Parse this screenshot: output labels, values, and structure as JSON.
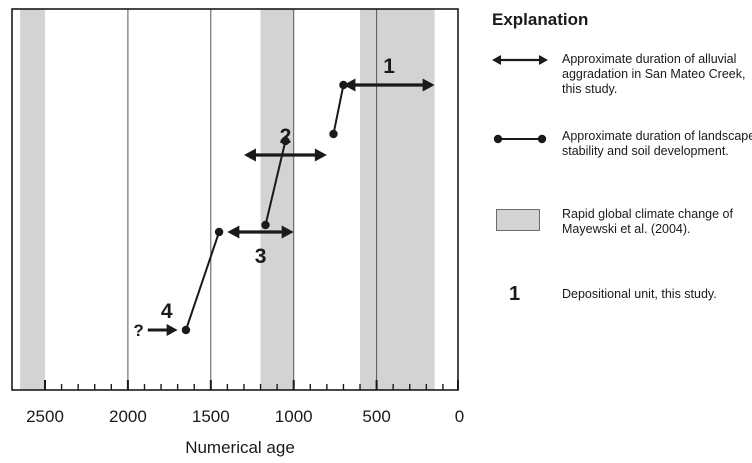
{
  "chart_data": {
    "type": "timeline",
    "xlabel": "Numerical age",
    "xlim": [
      2650,
      0
    ],
    "x_reversed": true,
    "ticks_major": [
      2500,
      2000,
      1500,
      1000,
      500,
      0
    ],
    "tick_labels": [
      "2500",
      "2000",
      "1500",
      "1000",
      "500",
      "0"
    ],
    "ticks_minor": [
      2400,
      2300,
      2200,
      2100,
      1900,
      1800,
      1700,
      1600,
      1400,
      1300,
      1200,
      1100,
      900,
      800,
      700,
      600,
      400,
      300,
      200,
      100
    ],
    "vlines": [
      2000,
      1500,
      1000,
      500
    ],
    "climate_change_periods": [
      [
        2650,
        2500
      ],
      [
        1200,
        1000
      ],
      [
        600,
        150
      ]
    ],
    "aggradation_units": [
      {
        "label": "1",
        "start": 700,
        "end": 150,
        "level": 8
      },
      {
        "label": "2",
        "start": 1300,
        "end": 800,
        "level": 6
      },
      {
        "label": "3",
        "start": 1400,
        "end": 1000,
        "level": 3.8
      },
      {
        "label": "4",
        "start": 1880,
        "end": 1700,
        "level": 1,
        "uncertain_start": true,
        "uncertain_label": "?"
      }
    ],
    "stability_segments": [
      {
        "from": [
          1650,
          1
        ],
        "to": [
          1450,
          3.8
        ]
      },
      {
        "from": [
          1170,
          4
        ],
        "to": [
          1050,
          6.4
        ]
      },
      {
        "from": [
          760,
          6.6
        ],
        "to": [
          700,
          8
        ]
      }
    ],
    "grid": false
  },
  "legend": {
    "title": "Explanation",
    "items": [
      {
        "symbol": "double-arrow-icon",
        "text": "Approximate duration of alluvial aggradation in San Mateo Creek, this study."
      },
      {
        "symbol": "dumbbell-line-icon",
        "text": "Approximate duration of landscape stability and soil development."
      },
      {
        "symbol": "gray-swatch-icon",
        "text": "Rapid global climate change of Mayewski et al. (2004)."
      },
      {
        "symbol": "unit-number-icon",
        "symbol_text": "1",
        "text": "Depositional unit, this study."
      }
    ]
  },
  "colors": {
    "band": "#d3d3d3",
    "ink": "#1a1a1a",
    "vline": "#555555"
  }
}
